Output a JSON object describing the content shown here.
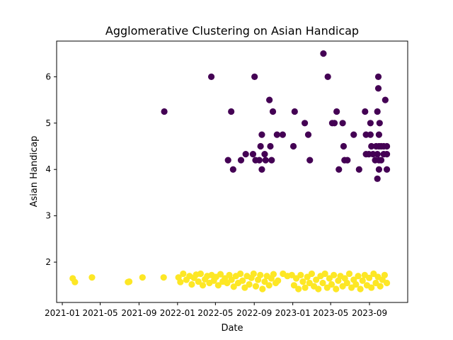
{
  "chart_data": {
    "type": "scatter",
    "title": "Agglomerative Clustering on Asian Handicap",
    "xlabel": "Date",
    "ylabel": "Asian Handicap",
    "x_ticks": [
      "2021-01",
      "2021-05",
      "2021-09",
      "2022-01",
      "2022-05",
      "2022-09",
      "2023-01",
      "2023-05",
      "2023-09"
    ],
    "y_ticks": [
      "2",
      "3",
      "4",
      "5",
      "6"
    ],
    "xlim": [
      "2020-12-14",
      "2023-12-31"
    ],
    "ylim": [
      1.13,
      6.77
    ],
    "grid": false,
    "colors": {
      "cluster_0": "#440154",
      "cluster_1": "#fde725"
    },
    "series": [
      {
        "cluster": 0,
        "points": [
          [
            "2021-11-20",
            5.25
          ],
          [
            "2022-04-18",
            6.0
          ],
          [
            "2022-06-10",
            4.2
          ],
          [
            "2022-06-20",
            5.25
          ],
          [
            "2022-06-26",
            4.0
          ],
          [
            "2022-07-21",
            4.2
          ],
          [
            "2022-08-05",
            4.33
          ],
          [
            "2022-08-28",
            4.33
          ],
          [
            "2022-09-02",
            6.0
          ],
          [
            "2022-09-05",
            4.2
          ],
          [
            "2022-09-17",
            4.2
          ],
          [
            "2022-09-21",
            4.5
          ],
          [
            "2022-09-25",
            4.0
          ],
          [
            "2022-09-25",
            4.75
          ],
          [
            "2022-10-04",
            4.33
          ],
          [
            "2022-10-07",
            4.2
          ],
          [
            "2022-10-19",
            5.5
          ],
          [
            "2022-10-22",
            4.5
          ],
          [
            "2022-10-26",
            4.2
          ],
          [
            "2022-10-30",
            5.25
          ],
          [
            "2022-11-12",
            4.75
          ],
          [
            "2022-11-30",
            4.75
          ],
          [
            "2023-01-03",
            4.5
          ],
          [
            "2023-01-07",
            5.25
          ],
          [
            "2023-02-08",
            5.0
          ],
          [
            "2023-02-19",
            4.75
          ],
          [
            "2023-02-24",
            4.2
          ],
          [
            "2023-04-08",
            6.5
          ],
          [
            "2023-04-22",
            6.0
          ],
          [
            "2023-05-06",
            5.0
          ],
          [
            "2023-05-13",
            5.0
          ],
          [
            "2023-05-20",
            5.25
          ],
          [
            "2023-05-27",
            4.0
          ],
          [
            "2023-06-08",
            5.0
          ],
          [
            "2023-06-11",
            4.5
          ],
          [
            "2023-06-14",
            4.2
          ],
          [
            "2023-06-23",
            4.2
          ],
          [
            "2023-07-13",
            4.75
          ],
          [
            "2023-07-30",
            4.0
          ],
          [
            "2023-08-18",
            5.25
          ],
          [
            "2023-08-21",
            4.75
          ],
          [
            "2023-08-21",
            4.33
          ],
          [
            "2023-08-30",
            4.33
          ],
          [
            "2023-09-04",
            4.75
          ],
          [
            "2023-09-04",
            5.0
          ],
          [
            "2023-09-07",
            4.5
          ],
          [
            "2023-09-12",
            4.33
          ],
          [
            "2023-09-19",
            4.2
          ],
          [
            "2023-09-22",
            4.5
          ],
          [
            "2023-09-26",
            5.25
          ],
          [
            "2023-09-26",
            4.33
          ],
          [
            "2023-09-26",
            3.8
          ],
          [
            "2023-09-29",
            6.0
          ],
          [
            "2023-09-29",
            5.75
          ],
          [
            "2023-10-01",
            4.5
          ],
          [
            "2023-10-01",
            4.2
          ],
          [
            "2023-10-01",
            4.75
          ],
          [
            "2023-10-01",
            4.0
          ],
          [
            "2023-10-03",
            5.0
          ],
          [
            "2023-10-08",
            4.5
          ],
          [
            "2023-10-08",
            4.2
          ],
          [
            "2023-10-16",
            4.33
          ],
          [
            "2023-10-16",
            4.5
          ],
          [
            "2023-10-21",
            5.5
          ],
          [
            "2023-10-26",
            4.5
          ],
          [
            "2023-10-26",
            4.33
          ],
          [
            "2023-10-26",
            4.0
          ]
        ]
      },
      {
        "cluster": 1,
        "points": [
          [
            "2021-02-03",
            1.65
          ],
          [
            "2021-02-10",
            1.57
          ],
          [
            "2021-04-05",
            1.67
          ],
          [
            "2021-07-28",
            1.57
          ],
          [
            "2021-08-01",
            1.58
          ],
          [
            "2021-09-12",
            1.67
          ],
          [
            "2021-11-18",
            1.67
          ],
          [
            "2022-01-04",
            1.67
          ],
          [
            "2022-01-10",
            1.57
          ],
          [
            "2022-01-19",
            1.75
          ],
          [
            "2022-01-29",
            1.62
          ],
          [
            "2022-02-08",
            1.7
          ],
          [
            "2022-02-15",
            1.52
          ],
          [
            "2022-02-22",
            1.66
          ],
          [
            "2022-03-01",
            1.73
          ],
          [
            "2022-03-08",
            1.58
          ],
          [
            "2022-03-15",
            1.75
          ],
          [
            "2022-03-22",
            1.5
          ],
          [
            "2022-03-29",
            1.63
          ],
          [
            "2022-04-05",
            1.7
          ],
          [
            "2022-04-12",
            1.55
          ],
          [
            "2022-04-19",
            1.72
          ],
          [
            "2022-04-26",
            1.6
          ],
          [
            "2022-05-03",
            1.68
          ],
          [
            "2022-05-10",
            1.5
          ],
          [
            "2022-05-17",
            1.74
          ],
          [
            "2022-05-24",
            1.58
          ],
          [
            "2022-05-31",
            1.65
          ],
          [
            "2022-06-07",
            1.55
          ],
          [
            "2022-06-14",
            1.72
          ],
          [
            "2022-06-21",
            1.62
          ],
          [
            "2022-06-28",
            1.47
          ],
          [
            "2022-07-05",
            1.7
          ],
          [
            "2022-07-12",
            1.55
          ],
          [
            "2022-07-19",
            1.75
          ],
          [
            "2022-07-26",
            1.6
          ],
          [
            "2022-08-02",
            1.45
          ],
          [
            "2022-08-09",
            1.7
          ],
          [
            "2022-08-16",
            1.52
          ],
          [
            "2022-08-23",
            1.66
          ],
          [
            "2022-08-30",
            1.75
          ],
          [
            "2022-09-06",
            1.48
          ],
          [
            "2022-09-13",
            1.62
          ],
          [
            "2022-09-20",
            1.72
          ],
          [
            "2022-09-27",
            1.42
          ],
          [
            "2022-10-04",
            1.58
          ],
          [
            "2022-10-11",
            1.7
          ],
          [
            "2022-10-18",
            1.5
          ],
          [
            "2022-10-25",
            1.65
          ],
          [
            "2022-11-01",
            1.74
          ],
          [
            "2022-11-08",
            1.55
          ],
          [
            "2022-11-15",
            1.6
          ],
          [
            "2022-12-01",
            1.75
          ],
          [
            "2022-12-15",
            1.7
          ],
          [
            "2022-12-29",
            1.72
          ],
          [
            "2023-01-05",
            1.5
          ],
          [
            "2023-01-12",
            1.65
          ],
          [
            "2023-01-19",
            1.42
          ],
          [
            "2023-01-26",
            1.72
          ],
          [
            "2023-02-02",
            1.58
          ],
          [
            "2023-02-09",
            1.45
          ],
          [
            "2023-02-16",
            1.68
          ],
          [
            "2023-02-23",
            1.55
          ],
          [
            "2023-03-02",
            1.75
          ],
          [
            "2023-03-09",
            1.48
          ],
          [
            "2023-03-16",
            1.62
          ],
          [
            "2023-03-23",
            1.42
          ],
          [
            "2023-03-30",
            1.7
          ],
          [
            "2023-04-06",
            1.55
          ],
          [
            "2023-04-13",
            1.75
          ],
          [
            "2023-04-20",
            1.45
          ],
          [
            "2023-04-27",
            1.65
          ],
          [
            "2023-05-04",
            1.52
          ],
          [
            "2023-05-11",
            1.72
          ],
          [
            "2023-05-18",
            1.42
          ],
          [
            "2023-05-25",
            1.6
          ],
          [
            "2023-06-01",
            1.7
          ],
          [
            "2023-06-08",
            1.48
          ],
          [
            "2023-06-15",
            1.65
          ],
          [
            "2023-06-22",
            1.55
          ],
          [
            "2023-06-29",
            1.75
          ],
          [
            "2023-07-06",
            1.45
          ],
          [
            "2023-07-13",
            1.62
          ],
          [
            "2023-07-20",
            1.52
          ],
          [
            "2023-07-27",
            1.7
          ],
          [
            "2023-08-03",
            1.42
          ],
          [
            "2023-08-10",
            1.6
          ],
          [
            "2023-08-17",
            1.72
          ],
          [
            "2023-08-24",
            1.5
          ],
          [
            "2023-08-31",
            1.66
          ],
          [
            "2023-09-07",
            1.45
          ],
          [
            "2023-09-14",
            1.75
          ],
          [
            "2023-09-21",
            1.55
          ],
          [
            "2023-09-28",
            1.68
          ],
          [
            "2023-10-05",
            1.48
          ],
          [
            "2023-10-12",
            1.62
          ],
          [
            "2023-10-19",
            1.72
          ],
          [
            "2023-10-26",
            1.55
          ]
        ]
      }
    ]
  }
}
